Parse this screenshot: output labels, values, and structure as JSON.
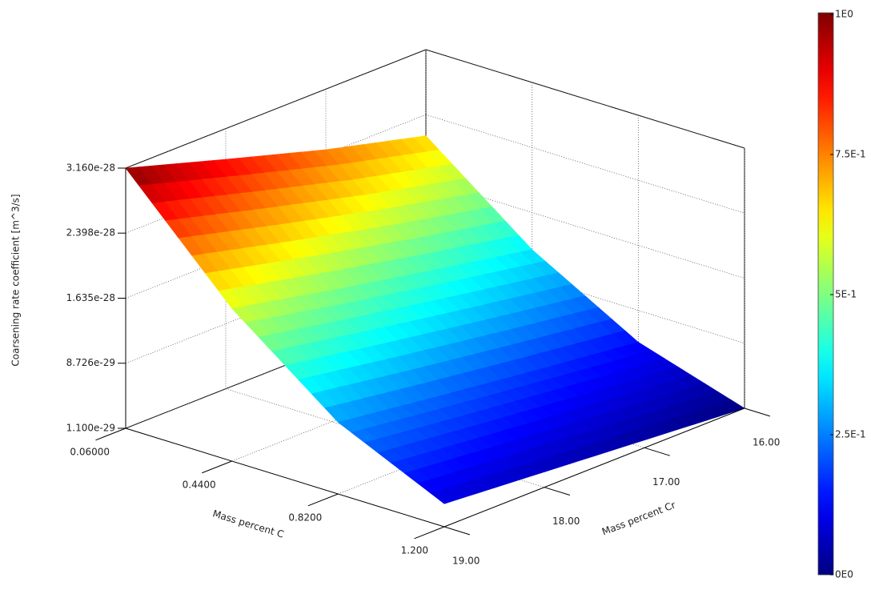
{
  "chart_data": {
    "type": "surface",
    "xlabel": "Mass percent C",
    "ylabel": "Mass percent Cr",
    "zlabel": "Coarsening rate coefficient [m^3/s]",
    "x": [
      0.06,
      0.44,
      0.82,
      1.2
    ],
    "y": [
      16,
      17,
      18,
      19
    ],
    "z": [
      [
        2.15e-28,
        1.2e-28,
        5e-29,
        1.1e-29
      ],
      [
        2.45e-28,
        1.42e-28,
        6.4e-29,
        2e-29
      ],
      [
        2.8e-28,
        1.65e-28,
        7.9e-29,
        2.9e-29
      ],
      [
        3.16e-28,
        1.9e-28,
        9.5e-29,
        3.8e-29
      ]
    ],
    "xlim": [
      0.06,
      1.2
    ],
    "ylim": [
      16,
      19
    ],
    "zlim": [
      1.1e-29,
      3.16e-28
    ],
    "xticks": [
      {
        "value": 0.06,
        "label": "0.06000"
      },
      {
        "value": 0.44,
        "label": "0.4400"
      },
      {
        "value": 0.82,
        "label": "0.8200"
      },
      {
        "value": 1.2,
        "label": "1.200"
      }
    ],
    "yticks": [
      {
        "value": 16,
        "label": "16.00"
      },
      {
        "value": 17,
        "label": "17.00"
      },
      {
        "value": 18,
        "label": "18.00"
      },
      {
        "value": 19,
        "label": "19.00"
      }
    ],
    "zticks": [
      {
        "value": 1.1e-29,
        "label": "1.100e-29"
      },
      {
        "value": 8.726e-29,
        "label": "8.726e-29"
      },
      {
        "value": 1.635e-28,
        "label": "1.635e-28"
      },
      {
        "value": 2.398e-28,
        "label": "2.398e-28"
      },
      {
        "value": 3.16e-28,
        "label": "3.160e-28"
      }
    ],
    "colormap": "jet",
    "clim": [
      0,
      1
    ],
    "cticks": [
      {
        "value": 0,
        "label": "0E0"
      },
      {
        "value": 0.25,
        "label": "2.5E-1"
      },
      {
        "value": 0.5,
        "label": "5E-1"
      },
      {
        "value": 0.75,
        "label": "7.5E-1"
      },
      {
        "value": 1,
        "label": "1E0"
      }
    ],
    "grid": true
  }
}
